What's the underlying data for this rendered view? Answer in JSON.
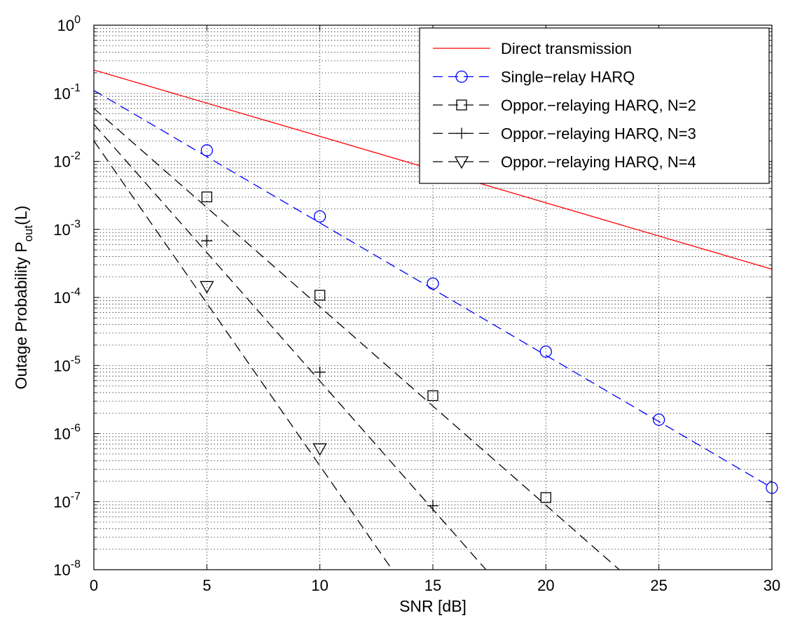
{
  "chart_data": {
    "type": "line",
    "title": "",
    "xlabel": "SNR [dB]",
    "ylabel": {
      "main": "Outage Probability P",
      "subscript": "out",
      "suffix": "(L)"
    },
    "xlim": [
      0,
      30
    ],
    "ylim": [
      1e-08,
      1
    ],
    "yscale": "log",
    "grid": true,
    "legend_position": "top-right",
    "x_ticks": [
      0,
      5,
      10,
      15,
      20,
      25,
      30
    ],
    "y_ticks": [
      {
        "value": 1,
        "base": "10",
        "exp": "0"
      },
      {
        "value": 0.1,
        "base": "10",
        "exp": "-1"
      },
      {
        "value": 0.01,
        "base": "10",
        "exp": "-2"
      },
      {
        "value": 0.001,
        "base": "10",
        "exp": "-3"
      },
      {
        "value": 0.0001,
        "base": "10",
        "exp": "-4"
      },
      {
        "value": 1e-05,
        "base": "10",
        "exp": "-5"
      },
      {
        "value": 1e-06,
        "base": "10",
        "exp": "-6"
      },
      {
        "value": 1e-07,
        "base": "10",
        "exp": "-7"
      },
      {
        "value": 1e-08,
        "base": "10",
        "exp": "-8"
      }
    ],
    "series": [
      {
        "name": "Direct transmission",
        "color": "#ff0000",
        "dash": "solid",
        "marker": "none",
        "x": [
          0,
          30
        ],
        "y": [
          0.22,
          0.00026
        ],
        "marker_x": [],
        "marker_y": []
      },
      {
        "name": "Single−relay HARQ",
        "color": "#0000ff",
        "dash": "dashed",
        "marker": "circle",
        "x": [
          0,
          30
        ],
        "y": [
          0.11,
          1.6e-07
        ],
        "marker_x": [
          5,
          10,
          15,
          20,
          25,
          30
        ],
        "marker_y": [
          0.0145,
          0.00155,
          0.00016,
          1.6e-05,
          1.6e-06,
          1.6e-07
        ]
      },
      {
        "name": "Oppor.−relaying HARQ, N=2",
        "color": "#000000",
        "dash": "dashed",
        "marker": "square",
        "x": [
          0,
          23.25
        ],
        "y": [
          0.06,
          1e-08
        ],
        "marker_x": [
          5,
          10,
          15,
          20
        ],
        "marker_y": [
          0.003,
          0.000108,
          3.6e-06,
          1.15e-07
        ]
      },
      {
        "name": "Oppor.−relaying HARQ, N=3",
        "color": "#000000",
        "dash": "dashed",
        "marker": "plus",
        "x": [
          0,
          17.35
        ],
        "y": [
          0.035,
          1e-08
        ],
        "marker_x": [
          5,
          10,
          15
        ],
        "marker_y": [
          0.00068,
          8e-06,
          8.7e-08
        ]
      },
      {
        "name": "Oppor.−relaying HARQ, N=4",
        "color": "#000000",
        "dash": "dashed",
        "marker": "triangle-down",
        "x": [
          0,
          13.2
        ],
        "y": [
          0.02,
          1e-08
        ],
        "marker_x": [
          5,
          10
        ],
        "marker_y": [
          0.000145,
          6e-07
        ],
        "marker_x_full": []
      }
    ]
  }
}
